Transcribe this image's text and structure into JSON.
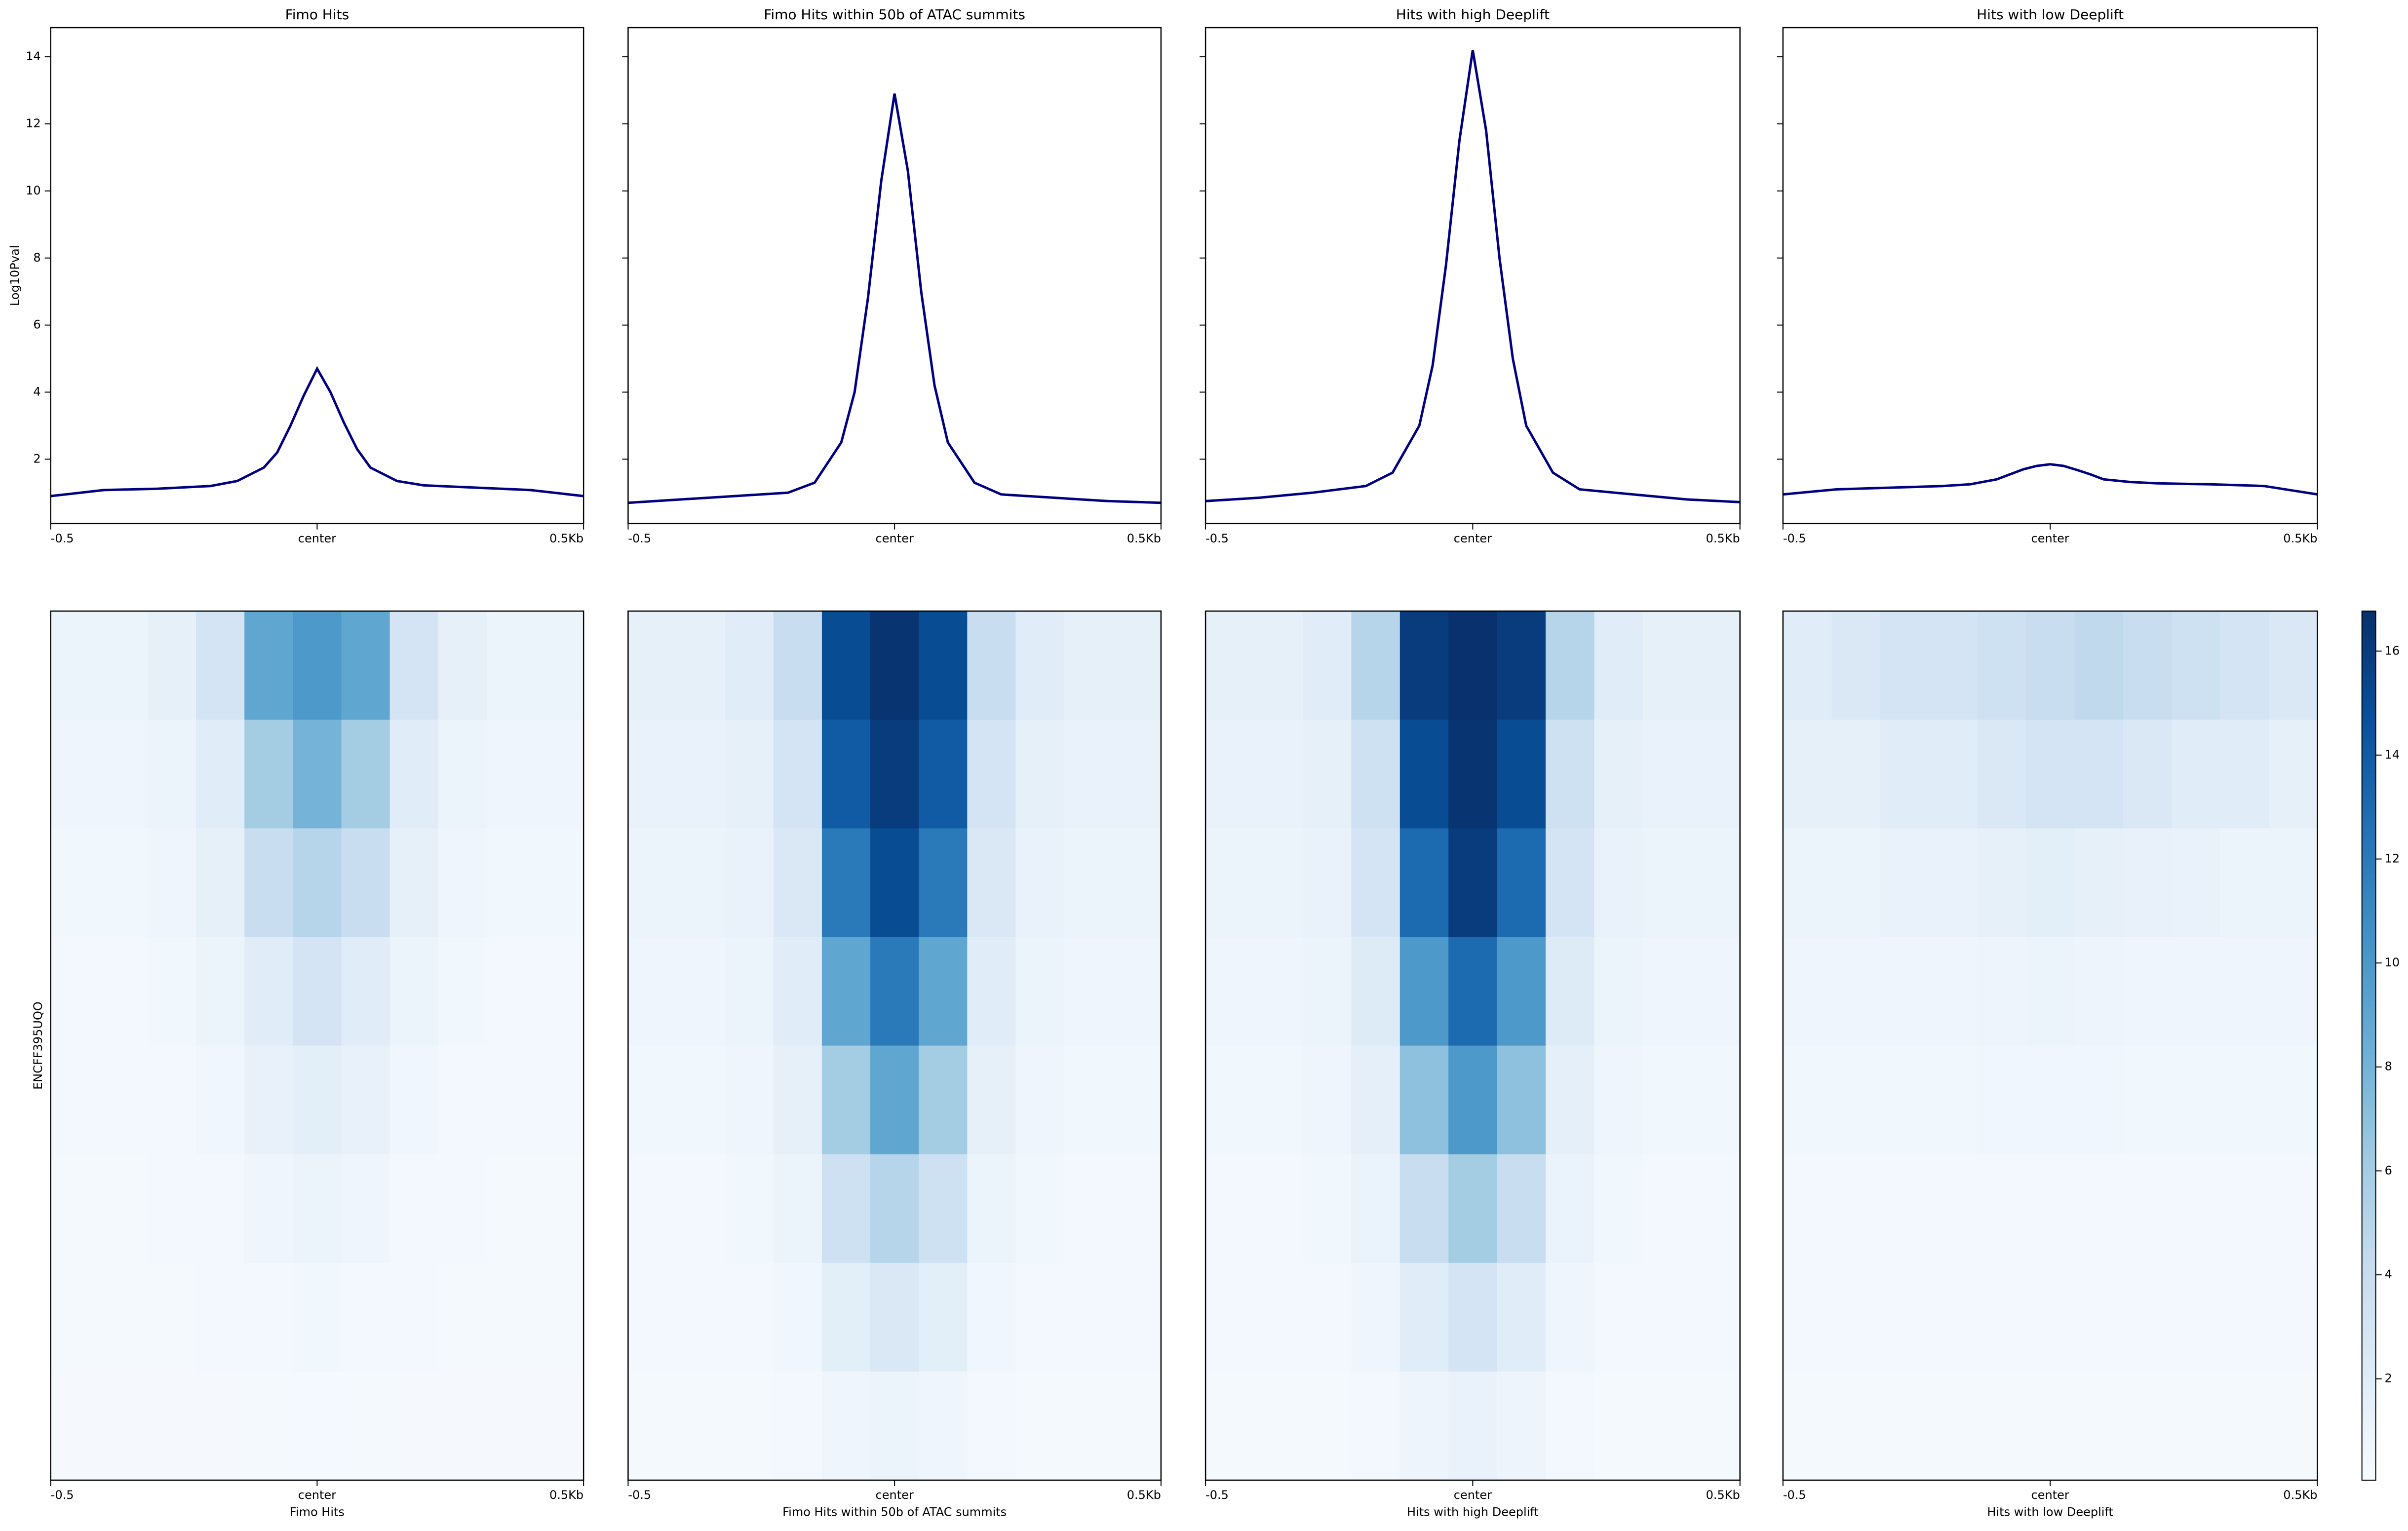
{
  "chart_data": [
    {
      "type": "line",
      "title": "Fimo Hits",
      "ylabel": "Log10Pval",
      "color": "#000080",
      "x": [
        -500,
        -400,
        -300,
        -200,
        -150,
        -100,
        -75,
        -50,
        -25,
        0,
        25,
        50,
        75,
        100,
        150,
        200,
        300,
        400,
        500
      ],
      "values": [
        0.9,
        1.08,
        1.12,
        1.2,
        1.35,
        1.75,
        2.2,
        3.0,
        3.9,
        4.7,
        4.0,
        3.1,
        2.3,
        1.75,
        1.35,
        1.22,
        1.15,
        1.08,
        0.9
      ],
      "xlim": [
        -500,
        500
      ],
      "xticks": [
        {
          "value": -500,
          "label": "-0.5"
        },
        {
          "value": 0,
          "label": "center"
        },
        {
          "value": 500,
          "label": "0.5Kb"
        }
      ],
      "ylim": [
        0.08,
        14.87
      ],
      "yticks": [
        2,
        4,
        6,
        8,
        10,
        12,
        14
      ]
    },
    {
      "type": "line",
      "title": "Fimo Hits within 50b of ATAC summits",
      "color": "#000080",
      "x": [
        -500,
        -400,
        -300,
        -200,
        -150,
        -100,
        -75,
        -50,
        -25,
        0,
        25,
        50,
        75,
        100,
        150,
        200,
        300,
        400,
        500
      ],
      "values": [
        0.7,
        0.8,
        0.9,
        1.0,
        1.3,
        2.5,
        4.0,
        6.8,
        10.3,
        12.9,
        10.6,
        7.0,
        4.2,
        2.5,
        1.3,
        0.95,
        0.85,
        0.75,
        0.7
      ],
      "xlim": [
        -500,
        500
      ],
      "xticks": [
        {
          "value": -500,
          "label": "-0.5"
        },
        {
          "value": 0,
          "label": "center"
        },
        {
          "value": 500,
          "label": "0.5Kb"
        }
      ],
      "ylim": [
        0.08,
        14.87
      ],
      "yticks": [
        2,
        4,
        6,
        8,
        10,
        12,
        14
      ]
    },
    {
      "type": "line",
      "title": "Hits with high Deeplift",
      "color": "#000080",
      "x": [
        -500,
        -400,
        -300,
        -200,
        -150,
        -100,
        -75,
        -50,
        -25,
        0,
        25,
        50,
        75,
        100,
        150,
        200,
        300,
        400,
        500
      ],
      "values": [
        0.75,
        0.85,
        1.0,
        1.2,
        1.6,
        3.0,
        4.8,
        7.8,
        11.5,
        14.2,
        11.8,
        8.0,
        5.0,
        3.0,
        1.6,
        1.1,
        0.95,
        0.8,
        0.72
      ],
      "xlim": [
        -500,
        500
      ],
      "xticks": [
        {
          "value": -500,
          "label": "-0.5"
        },
        {
          "value": 0,
          "label": "center"
        },
        {
          "value": 500,
          "label": "0.5Kb"
        }
      ],
      "ylim": [
        0.08,
        14.87
      ],
      "yticks": [
        2,
        4,
        6,
        8,
        10,
        12,
        14
      ]
    },
    {
      "type": "line",
      "title": "Hits with low Deeplift",
      "color": "#000080",
      "x": [
        -500,
        -400,
        -300,
        -200,
        -150,
        -100,
        -75,
        -50,
        -25,
        0,
        25,
        50,
        75,
        100,
        150,
        200,
        300,
        400,
        500
      ],
      "values": [
        0.95,
        1.1,
        1.15,
        1.2,
        1.25,
        1.4,
        1.55,
        1.7,
        1.8,
        1.85,
        1.8,
        1.68,
        1.55,
        1.4,
        1.32,
        1.28,
        1.25,
        1.2,
        0.95
      ],
      "xlim": [
        -500,
        500
      ],
      "xticks": [
        {
          "value": -500,
          "label": "-0.5"
        },
        {
          "value": 0,
          "label": "center"
        },
        {
          "value": 500,
          "label": "0.5Kb"
        }
      ],
      "ylim": [
        0.08,
        14.87
      ],
      "yticks": [
        2,
        4,
        6,
        8,
        10,
        12,
        14
      ]
    },
    {
      "type": "heatmap",
      "xlabel": "Fimo Hits",
      "ylabel": "ENCFF395UQO",
      "xticks": [
        {
          "value": -500,
          "label": "-0.5"
        },
        {
          "value": 0,
          "label": "center"
        },
        {
          "value": 500,
          "label": "0.5Kb"
        }
      ],
      "xlim": [
        -500,
        500
      ],
      "zlim": [
        0.05,
        16.77
      ],
      "colormap": [
        "#f7fbff",
        "#deebf7",
        "#c6dbef",
        "#9ecae1",
        "#6baed6",
        "#4292c6",
        "#2171b5",
        "#08519c",
        "#08306b"
      ],
      "values": [
        [
          1,
          1,
          1.5,
          3,
          9,
          10,
          9,
          3,
          1.5,
          1,
          1
        ],
        [
          0.8,
          0.8,
          1,
          2,
          6,
          8,
          6,
          2,
          1,
          0.8,
          0.8
        ],
        [
          0.6,
          0.6,
          0.8,
          1.5,
          4,
          5,
          4,
          1.5,
          0.8,
          0.6,
          0.6
        ],
        [
          0.5,
          0.5,
          0.6,
          1,
          2,
          3,
          2,
          1,
          0.6,
          0.5,
          0.5
        ],
        [
          0.4,
          0.4,
          0.5,
          0.7,
          1.3,
          1.8,
          1.3,
          0.7,
          0.5,
          0.4,
          0.4
        ],
        [
          0.3,
          0.3,
          0.4,
          0.5,
          0.8,
          1,
          0.8,
          0.5,
          0.4,
          0.3,
          0.3
        ],
        [
          0.3,
          0.3,
          0.3,
          0.4,
          0.5,
          0.6,
          0.5,
          0.4,
          0.3,
          0.3,
          0.3
        ],
        [
          0.25,
          0.25,
          0.25,
          0.25,
          0.3,
          0.35,
          0.3,
          0.25,
          0.25,
          0.25,
          0.25
        ]
      ]
    },
    {
      "type": "heatmap",
      "xlabel": "Fimo Hits within 50b of ATAC summits",
      "xticks": [
        {
          "value": -500,
          "label": "-0.5"
        },
        {
          "value": 0,
          "label": "center"
        },
        {
          "value": 500,
          "label": "0.5Kb"
        }
      ],
      "xlim": [
        -500,
        500
      ],
      "zlim": [
        0.05,
        16.77
      ],
      "colormap": [
        "#f7fbff",
        "#deebf7",
        "#c6dbef",
        "#9ecae1",
        "#6baed6",
        "#4292c6",
        "#2171b5",
        "#08519c",
        "#08306b"
      ],
      "values": [
        [
          1.5,
          1.5,
          2,
          4,
          15,
          16.5,
          15,
          4,
          2,
          1.5,
          1.5
        ],
        [
          1.2,
          1.2,
          1.5,
          3,
          14,
          16,
          14,
          3,
          1.5,
          1.2,
          1.2
        ],
        [
          1,
          1,
          1.2,
          2.5,
          12,
          15,
          12,
          2.5,
          1.2,
          1,
          1
        ],
        [
          0.8,
          0.8,
          1,
          2,
          9,
          12,
          9,
          2,
          1,
          0.8,
          0.8
        ],
        [
          0.6,
          0.6,
          0.8,
          1.5,
          6,
          9,
          6,
          1.5,
          0.8,
          0.6,
          0.6
        ],
        [
          0.5,
          0.5,
          0.6,
          1,
          3.5,
          5,
          3.5,
          1,
          0.6,
          0.5,
          0.5
        ],
        [
          0.4,
          0.4,
          0.5,
          0.7,
          1.8,
          2.5,
          1.8,
          0.7,
          0.5,
          0.4,
          0.4
        ],
        [
          0.3,
          0.3,
          0.3,
          0.4,
          0.8,
          1,
          0.8,
          0.4,
          0.3,
          0.3,
          0.3
        ]
      ]
    },
    {
      "type": "heatmap",
      "xlabel": "Hits with high Deeplift",
      "xticks": [
        {
          "value": -500,
          "label": "-0.5"
        },
        {
          "value": 0,
          "label": "center"
        },
        {
          "value": 500,
          "label": "0.5Kb"
        }
      ],
      "xlim": [
        -500,
        500
      ],
      "zlim": [
        0.05,
        16.77
      ],
      "colormap": [
        "#f7fbff",
        "#deebf7",
        "#c6dbef",
        "#9ecae1",
        "#6baed6",
        "#4292c6",
        "#2171b5",
        "#08519c",
        "#08306b"
      ],
      "values": [
        [
          1.5,
          1.5,
          2,
          5,
          16,
          16.7,
          16,
          5,
          2,
          1.5,
          1.5
        ],
        [
          1.2,
          1.2,
          1.5,
          3.5,
          15,
          16.5,
          15,
          3.5,
          1.5,
          1.2,
          1.2
        ],
        [
          1,
          1,
          1.2,
          3,
          13,
          16,
          13,
          3,
          1.2,
          1,
          1
        ],
        [
          0.8,
          0.8,
          1,
          2.2,
          10,
          13,
          10,
          2.2,
          1,
          0.8,
          0.8
        ],
        [
          0.6,
          0.6,
          0.8,
          1.6,
          7,
          10,
          7,
          1.6,
          0.8,
          0.6,
          0.6
        ],
        [
          0.5,
          0.5,
          0.6,
          1.1,
          4,
          6,
          4,
          1.1,
          0.6,
          0.5,
          0.5
        ],
        [
          0.4,
          0.4,
          0.5,
          0.8,
          2,
          3,
          2,
          0.8,
          0.5,
          0.4,
          0.4
        ],
        [
          0.3,
          0.3,
          0.3,
          0.4,
          0.9,
          1.2,
          0.9,
          0.4,
          0.3,
          0.3,
          0.3
        ]
      ]
    },
    {
      "type": "heatmap",
      "xlabel": "Hits with low Deeplift",
      "xticks": [
        {
          "value": -500,
          "label": "-0.5"
        },
        {
          "value": 0,
          "label": "center"
        },
        {
          "value": 500,
          "label": "0.5Kb"
        }
      ],
      "xlim": [
        -500,
        500
      ],
      "zlim": [
        0.05,
        16.77
      ],
      "zticks": [
        2,
        4,
        6,
        8,
        10,
        12,
        14,
        16
      ],
      "colormap": [
        "#f7fbff",
        "#deebf7",
        "#c6dbef",
        "#9ecae1",
        "#6baed6",
        "#4292c6",
        "#2171b5",
        "#08519c",
        "#08306b"
      ],
      "values": [
        [
          2,
          2.5,
          3,
          3,
          3.5,
          4,
          4.5,
          4,
          3.5,
          3,
          2.5
        ],
        [
          1.5,
          1.5,
          2,
          2,
          2.5,
          3,
          3,
          2.5,
          2,
          2,
          1.5
        ],
        [
          1,
          1,
          1.2,
          1.2,
          1.5,
          1.8,
          1.5,
          1.3,
          1.2,
          1,
          1
        ],
        [
          0.8,
          0.8,
          0.8,
          0.8,
          0.9,
          1,
          0.9,
          0.8,
          0.8,
          0.8,
          0.8
        ],
        [
          0.6,
          0.6,
          0.6,
          0.6,
          0.7,
          0.7,
          0.7,
          0.6,
          0.6,
          0.6,
          0.6
        ],
        [
          0.5,
          0.5,
          0.5,
          0.5,
          0.5,
          0.5,
          0.5,
          0.5,
          0.5,
          0.5,
          0.5
        ],
        [
          0.4,
          0.4,
          0.4,
          0.4,
          0.4,
          0.4,
          0.4,
          0.4,
          0.4,
          0.4,
          0.4
        ],
        [
          0.3,
          0.3,
          0.3,
          0.3,
          0.3,
          0.3,
          0.3,
          0.3,
          0.3,
          0.3,
          0.3
        ]
      ]
    }
  ]
}
